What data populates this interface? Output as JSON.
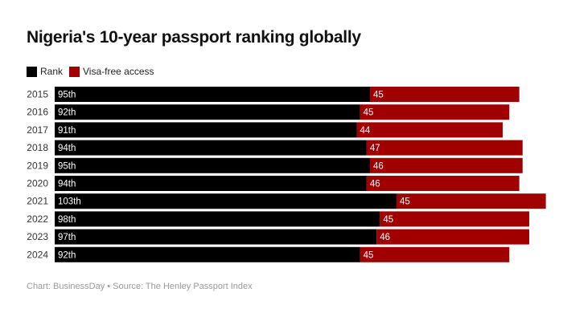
{
  "chart_data": {
    "type": "bar",
    "orientation": "horizontal",
    "stacked": true,
    "title": "Nigeria's 10-year passport ranking globally",
    "categories": [
      "2015",
      "2016",
      "2017",
      "2018",
      "2019",
      "2020",
      "2021",
      "2022",
      "2023",
      "2024"
    ],
    "series": [
      {
        "name": "Rank",
        "color": "#000000",
        "values": [
          95,
          92,
          91,
          94,
          95,
          94,
          103,
          98,
          97,
          92
        ],
        "labels": [
          "95th",
          "92th",
          "91th",
          "94th",
          "95th",
          "94th",
          "103th",
          "98th",
          "97th",
          "92th"
        ]
      },
      {
        "name": "Visa-free access",
        "color": "#a00000",
        "values": [
          45,
          45,
          44,
          47,
          46,
          46,
          45,
          45,
          46,
          45
        ],
        "labels": [
          "45",
          "45",
          "44",
          "47",
          "46",
          "46",
          "45",
          "45",
          "46",
          "45"
        ]
      }
    ],
    "grid": false,
    "legend_position": "top-left",
    "footer": "Chart: BusinessDay • Source: The Henley Passport Index"
  }
}
